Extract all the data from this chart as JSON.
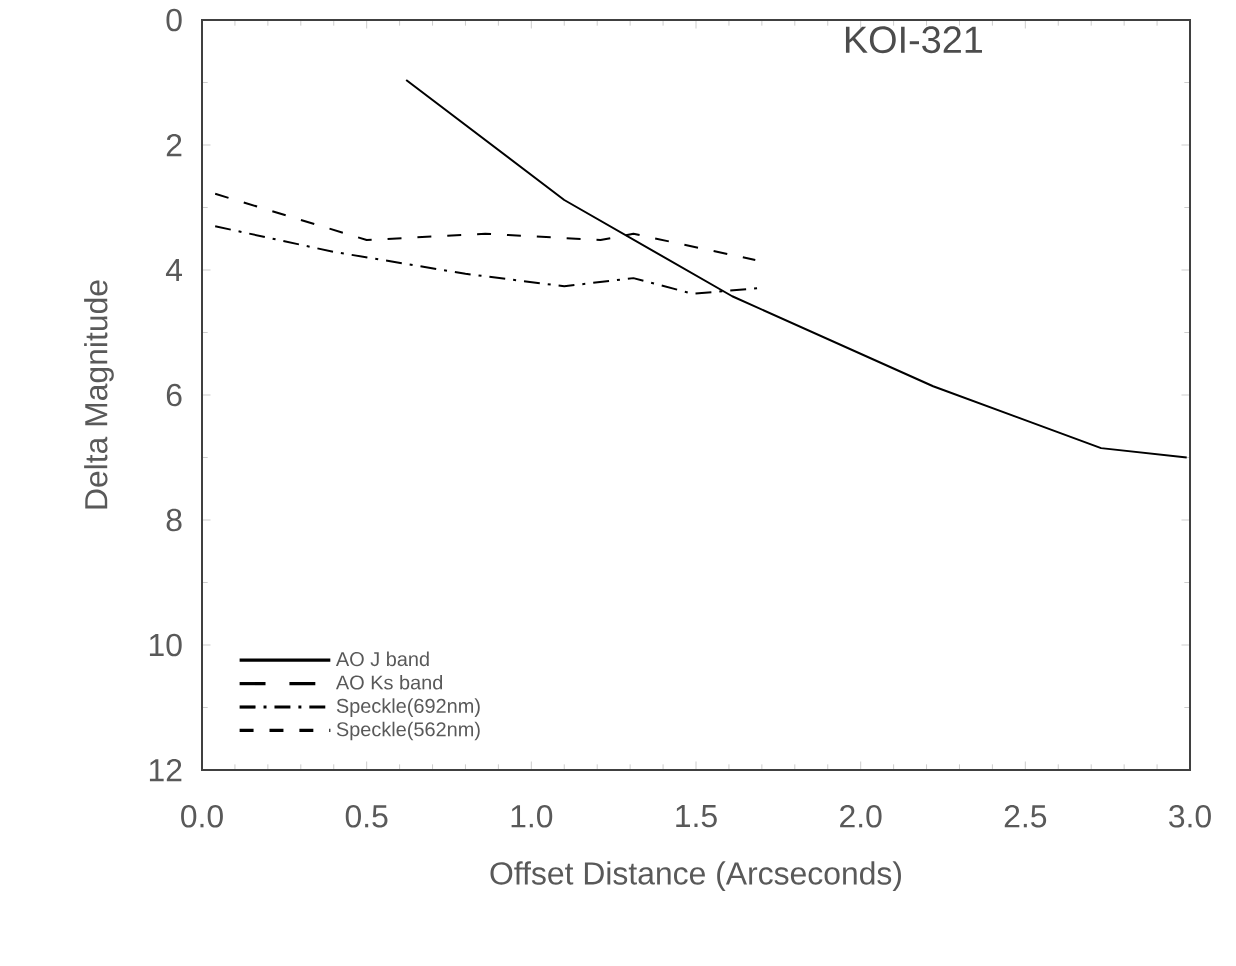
{
  "chart_data": {
    "type": "line",
    "title": "KOI-321",
    "xlabel": "Offset Distance (Arcseconds)",
    "ylabel": "Delta Magnitude",
    "xlim": [
      0,
      3
    ],
    "xticks": [
      {
        "value": 0,
        "label": "0.0"
      },
      {
        "value": 0.5,
        "label": "0.5"
      },
      {
        "value": 1,
        "label": "1.0"
      },
      {
        "value": 1.5,
        "label": "1.5"
      },
      {
        "value": 2,
        "label": "2.0"
      },
      {
        "value": 2.5,
        "label": "2.5"
      },
      {
        "value": 3,
        "label": "3.0"
      }
    ],
    "ylim": [
      12,
      0
    ],
    "yticks": [
      0,
      2,
      4,
      6,
      8,
      10,
      12
    ],
    "legend": "bottom left",
    "grid": false,
    "series": [
      {
        "name": "AO J band",
        "color": "#000000",
        "line_style": "solid",
        "x": [
          0.62,
          1.1,
          1.61,
          2.22,
          2.73,
          2.99
        ],
        "values": [
          0.96,
          2.88,
          4.42,
          5.86,
          6.85,
          7.0
        ]
      },
      {
        "name": "AO Ks band",
        "color": "#000000",
        "line_style": "long dashed"
      },
      {
        "name": "Speckle(692nm)",
        "color": "#000000",
        "line_style": "dashdot",
        "x": [
          0.04,
          0.4,
          0.8,
          1.1,
          1.31,
          1.49,
          1.69
        ],
        "values": [
          3.3,
          3.71,
          4.06,
          4.26,
          4.13,
          4.38,
          4.29
        ]
      },
      {
        "name": "Speckle(562nm)",
        "color": "#000000",
        "line_style": "dashed",
        "x": [
          0.04,
          0.5,
          0.86,
          1.21,
          1.31,
          1.68
        ],
        "values": [
          2.78,
          3.52,
          3.42,
          3.52,
          3.42,
          3.84
        ]
      }
    ]
  }
}
